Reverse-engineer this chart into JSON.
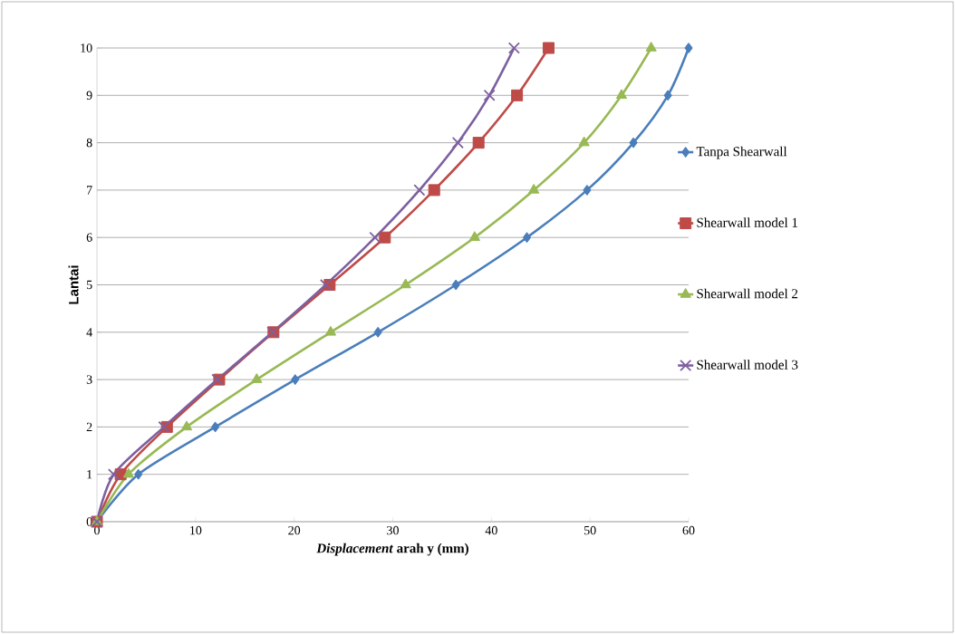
{
  "chart_data": {
    "type": "line",
    "xlabel": "*Displacement* arah y (mm)",
    "ylabel": "Lantai",
    "xlim": [
      0,
      60
    ],
    "xticks": [
      0,
      10,
      20,
      30,
      40,
      50,
      60
    ],
    "ylim": [
      0,
      10
    ],
    "yticks": [
      0,
      1,
      2,
      3,
      4,
      5,
      6,
      7,
      8,
      9,
      10
    ],
    "grid": "y",
    "legend": "right",
    "line_style": "solid",
    "series": [
      {
        "name": "Tanpa Shearwall",
        "color": "#4a7ebb",
        "marker": "diamond",
        "x": [
          0,
          4.2,
          12.0,
          20.1,
          28.5,
          36.4,
          43.6,
          49.7,
          54.4,
          57.9,
          60.0
        ],
        "values": [
          0,
          1,
          2,
          3,
          4,
          5,
          6,
          7,
          8,
          9,
          10
        ]
      },
      {
        "name": "Shearwall model 1",
        "color": "#be4b48",
        "marker": "square",
        "x": [
          0,
          2.4,
          7.1,
          12.4,
          17.9,
          23.6,
          29.2,
          34.2,
          38.7,
          42.6,
          45.8
        ],
        "values": [
          0,
          1,
          2,
          3,
          4,
          5,
          6,
          7,
          8,
          9,
          10
        ]
      },
      {
        "name": "Shearwall model 2",
        "color": "#98b954",
        "marker": "triangle",
        "x": [
          0,
          3.2,
          9.1,
          16.2,
          23.7,
          31.3,
          38.3,
          44.3,
          49.4,
          53.2,
          56.2
        ],
        "values": [
          0,
          1,
          2,
          3,
          4,
          5,
          6,
          7,
          8,
          9,
          10
        ]
      },
      {
        "name": "Shearwall model 3",
        "color": "#7d60a0",
        "marker": "cross",
        "x": [
          0,
          1.7,
          6.8,
          12.2,
          17.8,
          23.2,
          28.2,
          32.7,
          36.6,
          39.8,
          42.3
        ],
        "values": [
          0,
          1,
          2,
          3,
          4,
          5,
          6,
          7,
          8,
          9,
          10
        ]
      }
    ]
  }
}
